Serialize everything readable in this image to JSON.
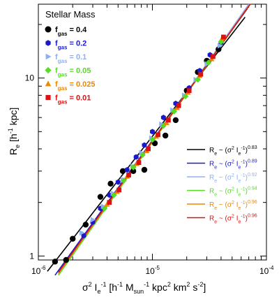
{
  "chart_data": {
    "type": "scatter",
    "title": "Stellar Mass",
    "xscale": "log",
    "yscale": "log",
    "xlim": [
      1e-06,
      0.0001
    ],
    "ylim": [
      0.95,
      26
    ],
    "xlabel": {
      "main": "σ",
      "sup1": "2",
      "main2": " I",
      "sub1": "e",
      "sup2": "-1",
      "main3": " [h",
      "sup3": "-1",
      "main4": " M",
      "sub2": "sun",
      "sup4": "-1",
      "main5": " kpc",
      "sup5": "2",
      "main6": " km",
      "sup6": "2",
      "main7": " s",
      "sup7": "-2",
      "main8": "]"
    },
    "ylabel": {
      "main": "R",
      "sub1": "e",
      "main2": " [h",
      "sup1": "-1",
      "main3": " kpc]"
    },
    "xticks": [
      {
        "base": "10",
        "exp": "-6",
        "value": 1e-06
      },
      {
        "base": "10",
        "exp": "-5",
        "value": 1e-05
      },
      {
        "base": "10",
        "exp": "-4",
        "value": 0.0001
      }
    ],
    "yticks": [
      {
        "label": "1",
        "value": 1
      },
      {
        "label": "10",
        "value": 10
      }
    ],
    "series": [
      {
        "name": "f gas = 0.4",
        "label_f": "f",
        "label_sub": "gas",
        "label_val": "= 0.4",
        "color": "#000000",
        "marker": "circle",
        "x": [
          1.4e-06,
          1.75e-06,
          2e-06,
          2.6e-06,
          3.5e-06,
          4.3e-06,
          5.5e-06,
          6.8e-06,
          8.5e-06,
          1.05e-05,
          1.3e-05,
          1.6e-05,
          2e-05,
          2.5e-05,
          3e-05,
          3.8e-05
        ],
        "y": [
          0.93,
          0.95,
          1.25,
          1.5,
          2.15,
          2.55,
          3.0,
          3.0,
          3.05,
          4.3,
          4.75,
          5.8,
          8.5,
          10.8,
          12.5,
          14.5
        ],
        "fit": {
          "slope": 0.83,
          "x": [
            1.2e-06,
            6.5e-05
          ],
          "y": [
            0.82,
            22.0
          ]
        }
      },
      {
        "name": "f gas = 0.2",
        "label_f": "f",
        "label_sub": "gas",
        "label_val": "= 0.2",
        "color": "#1a1acc",
        "marker": "hexagon",
        "x": [
          2.5e-06,
          3e-06,
          3.5e-06,
          4.2e-06,
          5e-06,
          6e-06,
          7.2e-06,
          8.5e-06,
          1e-05,
          1.25e-05,
          1.6e-05,
          2.1e-05,
          2.6e-05,
          3.2e-05,
          4e-05
        ],
        "y": [
          1.3,
          1.55,
          1.85,
          2.2,
          2.6,
          3.05,
          3.6,
          4.2,
          5.0,
          6.0,
          7.2,
          8.8,
          11.0,
          13.5,
          15.8
        ],
        "fit": {
          "slope": 0.89,
          "x": [
            1.4e-06,
            6.8e-05
          ],
          "y": [
            0.78,
            24.5
          ]
        }
      },
      {
        "name": "f gas = 0.1",
        "label_f": "f",
        "label_sub": "gas",
        "label_val": "= 0.1",
        "color": "#8fb0ee",
        "marker": "triangle-right",
        "x": [
          2.4e-06,
          3e-06,
          3.7e-06,
          4.5e-06,
          5.5e-06,
          6.7e-06,
          8e-06,
          9.8e-06,
          1.2e-05,
          1.5e-05,
          1.9e-05,
          2.4e-05,
          3e-05,
          3.9e-05
        ],
        "y": [
          1.35,
          1.6,
          1.9,
          2.25,
          2.7,
          3.2,
          3.8,
          4.6,
          5.5,
          6.6,
          8.0,
          9.8,
          12.0,
          15.2
        ],
        "fit": {
          "slope": 0.92,
          "x": [
            1.5e-06,
            7e-05
          ],
          "y": [
            0.79,
            26.0
          ]
        }
      },
      {
        "name": "f gas = 0.05",
        "label_f": "f",
        "label_sub": "gas",
        "label_val": "= 0.05",
        "color": "#55dd22",
        "marker": "diamond",
        "x": [
          3.8e-06,
          4.6e-06,
          5.6e-06,
          6.8e-06,
          8.2e-06,
          1e-05,
          1.25e-05,
          1.55e-05,
          1.95e-05,
          2.5e-05,
          3.1e-05,
          4e-05
        ],
        "y": [
          1.85,
          2.2,
          2.65,
          3.15,
          3.7,
          4.5,
          5.4,
          6.5,
          7.9,
          9.8,
          12.2,
          16.0
        ],
        "fit": {
          "slope": 0.94,
          "x": [
            1.5e-06,
            7.2e-05
          ],
          "y": [
            0.78,
            26.0
          ]
        }
      },
      {
        "name": "f gas = 0.025",
        "label_f": "f",
        "label_sub": "gas",
        "label_val": "= 0.025",
        "color": "#ee8800",
        "marker": "triangle-up",
        "x": [
          4e-06,
          4.9e-06,
          6e-06,
          7.3e-06,
          8.9e-06,
          1.08e-05,
          1.33e-05,
          1.65e-05,
          2.05e-05,
          2.6e-05,
          3.3e-05,
          4.1e-05
        ],
        "y": [
          1.95,
          2.3,
          2.8,
          3.3,
          3.9,
          4.7,
          5.6,
          6.8,
          8.3,
          10.3,
          12.8,
          16.8
        ],
        "fit": {
          "slope": 0.96,
          "x": [
            1.5e-06,
            7.2e-05
          ],
          "y": [
            0.8,
            26.0
          ]
        }
      },
      {
        "name": "f gas = 0.01",
        "label_f": "f",
        "label_sub": "gas",
        "label_val": "= 0.01",
        "color": "#dd1111",
        "marker": "square",
        "x": [
          4.2e-06,
          5.1e-06,
          6.2e-06,
          7.6e-06,
          9.2e-06,
          1.12e-05,
          1.38e-05,
          1.7e-05,
          2.1e-05,
          2.65e-05,
          3.4e-05,
          4.2e-05
        ],
        "y": [
          2.0,
          2.35,
          2.85,
          3.35,
          4.0,
          4.8,
          5.8,
          7.0,
          8.5,
          10.5,
          13.2,
          17.0
        ],
        "fit": {
          "slope": 0.96,
          "x": [
            1.5e-06,
            7.2e-05
          ],
          "y": [
            0.81,
            26.0
          ]
        }
      }
    ],
    "fit_legend": [
      {
        "R": "R",
        "sub": "e",
        "mid": " ~ (σ",
        "sup1": "2",
        "mid2": " I",
        "sub2": "e",
        "sup2": "-1",
        "close": ")",
        "exp": "0.83",
        "color": "#000000"
      },
      {
        "R": "R",
        "sub": "e",
        "mid": " ~ (σ",
        "sup1": "2",
        "mid2": " I",
        "sub2": "e",
        "sup2": "-1",
        "close": ")",
        "exp": "0.89",
        "color": "#1a1acc"
      },
      {
        "R": "R",
        "sub": "e",
        "mid": " ~ (σ",
        "sup1": "2",
        "mid2": " I",
        "sub2": "e",
        "sup2": "-1",
        "close": ")",
        "exp": "0.92",
        "color": "#8fb0ee"
      },
      {
        "R": "R",
        "sub": "e",
        "mid": " ~ (σ",
        "sup1": "2",
        "mid2": " I",
        "sub2": "e",
        "sup2": "-1",
        "close": ")",
        "exp": "0.94",
        "color": "#55dd22"
      },
      {
        "R": "R",
        "sub": "e",
        "mid": " ~ (σ",
        "sup1": "2",
        "mid2": " I",
        "sub2": "e",
        "sup2": "-1",
        "close": ")",
        "exp": "0.96",
        "color": "#ee8800"
      },
      {
        "R": "R",
        "sub": "e",
        "mid": " ~ (σ",
        "sup1": "2",
        "mid2": " I",
        "sub2": "e",
        "sup2": "-1",
        "close": ")",
        "exp": "0.96",
        "color": "#dd1111"
      }
    ],
    "legend_position": "top-left",
    "fit_legend_position": "bottom-right",
    "grid": false
  }
}
